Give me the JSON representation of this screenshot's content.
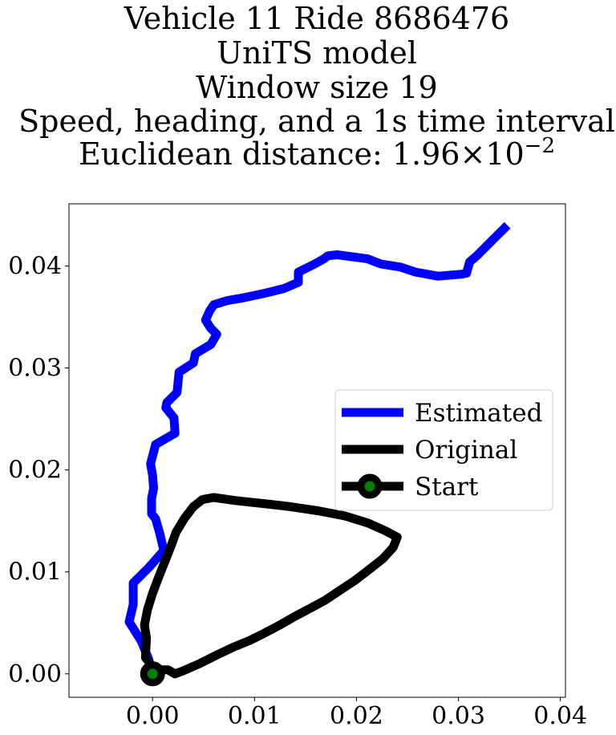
{
  "chart_data": {
    "type": "line",
    "title_lines": [
      "Vehicle 11 Ride 8686476",
      "UniTS model",
      "Window size 19",
      "Speed, heading, and a 1s time interval",
      "Euclidean distance: "
    ],
    "title_math": {
      "mantissa": "1.96",
      "times": "×",
      "base": "10",
      "exponent": "−2"
    },
    "xlabel": "",
    "ylabel": "",
    "xlim": [
      -0.0082,
      0.0405
    ],
    "ylim": [
      -0.0023,
      0.0461
    ],
    "xticks": [
      0.0,
      0.01,
      0.02,
      0.03,
      0.04
    ],
    "xtick_labels": [
      "0.00",
      "0.01",
      "0.02",
      "0.03",
      "0.04"
    ],
    "yticks": [
      0.0,
      0.01,
      0.02,
      0.03,
      0.04
    ],
    "ytick_labels": [
      "0.00",
      "0.01",
      "0.02",
      "0.03",
      "0.04"
    ],
    "grid": false,
    "legend_position": "center-right",
    "series": [
      {
        "name": "Estimated",
        "color": "#0000ff",
        "points": [
          [
            0.0,
            0.0
          ],
          [
            -0.0004,
            0.0015
          ],
          [
            -0.0011,
            0.0032
          ],
          [
            -0.0023,
            0.0051
          ],
          [
            -0.0019,
            0.0068
          ],
          [
            -0.0019,
            0.0089
          ],
          [
            -0.0003,
            0.0105
          ],
          [
            0.0011,
            0.0121
          ],
          [
            0.0007,
            0.0138
          ],
          [
            0.0003,
            0.0152
          ],
          [
            -0.0001,
            0.0157
          ],
          [
            -0.0001,
            0.0172
          ],
          [
            0.0001,
            0.0182
          ],
          [
            0.0,
            0.0195
          ],
          [
            -0.0002,
            0.0206
          ],
          [
            0.0003,
            0.0225
          ],
          [
            0.0022,
            0.0236
          ],
          [
            0.0021,
            0.0251
          ],
          [
            0.0013,
            0.0261
          ],
          [
            0.0014,
            0.0266
          ],
          [
            0.0024,
            0.0276
          ],
          [
            0.0026,
            0.0296
          ],
          [
            0.004,
            0.0305
          ],
          [
            0.0042,
            0.0314
          ],
          [
            0.0057,
            0.0323
          ],
          [
            0.0063,
            0.0333
          ],
          [
            0.0057,
            0.0339
          ],
          [
            0.0052,
            0.0347
          ],
          [
            0.0056,
            0.0356
          ],
          [
            0.006,
            0.0362
          ],
          [
            0.0073,
            0.0366
          ],
          [
            0.009,
            0.0369
          ],
          [
            0.0109,
            0.0373
          ],
          [
            0.0129,
            0.0378
          ],
          [
            0.0143,
            0.0384
          ],
          [
            0.0143,
            0.0394
          ],
          [
            0.0159,
            0.0402
          ],
          [
            0.0168,
            0.0407
          ],
          [
            0.0172,
            0.041
          ],
          [
            0.0181,
            0.0411
          ],
          [
            0.0196,
            0.0409
          ],
          [
            0.0211,
            0.0407
          ],
          [
            0.0224,
            0.0402
          ],
          [
            0.0243,
            0.0399
          ],
          [
            0.0258,
            0.0394
          ],
          [
            0.028,
            0.039
          ],
          [
            0.0303,
            0.0392
          ],
          [
            0.0308,
            0.0393
          ],
          [
            0.0311,
            0.0404
          ],
          [
            0.0318,
            0.041
          ],
          [
            0.0333,
            0.0425
          ],
          [
            0.0348,
            0.044
          ]
        ]
      },
      {
        "name": "Original",
        "color": "#000000",
        "points": [
          [
            0.0,
            0.0
          ],
          [
            -0.0001,
            0.0008
          ],
          [
            -0.0007,
            0.0016
          ],
          [
            -0.0006,
            0.0035
          ],
          [
            -0.0008,
            0.0048
          ],
          [
            -0.0005,
            0.0063
          ],
          [
            0.0,
            0.0079
          ],
          [
            0.0006,
            0.0095
          ],
          [
            0.0012,
            0.011
          ],
          [
            0.0018,
            0.0125
          ],
          [
            0.0023,
            0.0139
          ],
          [
            0.0031,
            0.0152
          ],
          [
            0.004,
            0.0164
          ],
          [
            0.0049,
            0.0171
          ],
          [
            0.006,
            0.0173
          ],
          [
            0.0081,
            0.017
          ],
          [
            0.0109,
            0.0167
          ],
          [
            0.0135,
            0.0164
          ],
          [
            0.0162,
            0.016
          ],
          [
            0.0188,
            0.0155
          ],
          [
            0.0211,
            0.0148
          ],
          [
            0.0229,
            0.014
          ],
          [
            0.024,
            0.0134
          ],
          [
            0.0236,
            0.0124
          ],
          [
            0.0226,
            0.0113
          ],
          [
            0.0212,
            0.0102
          ],
          [
            0.0199,
            0.0092
          ],
          [
            0.0184,
            0.0082
          ],
          [
            0.0169,
            0.0072
          ],
          [
            0.0154,
            0.0064
          ],
          [
            0.0139,
            0.0056
          ],
          [
            0.0125,
            0.0048
          ],
          [
            0.011,
            0.004
          ],
          [
            0.0096,
            0.0033
          ],
          [
            0.0079,
            0.0026
          ],
          [
            0.0062,
            0.0018
          ],
          [
            0.0046,
            0.001
          ],
          [
            0.003,
            0.0003
          ],
          [
            0.0022,
            0.0
          ],
          [
            0.0015,
            0.0004
          ],
          [
            0.0009,
            0.0004
          ],
          [
            0.0,
            0.0
          ]
        ]
      }
    ],
    "start_marker": {
      "name": "Start",
      "x": 0.0,
      "y": 0.0,
      "fill": "#008000",
      "edge": "#000000"
    }
  }
}
